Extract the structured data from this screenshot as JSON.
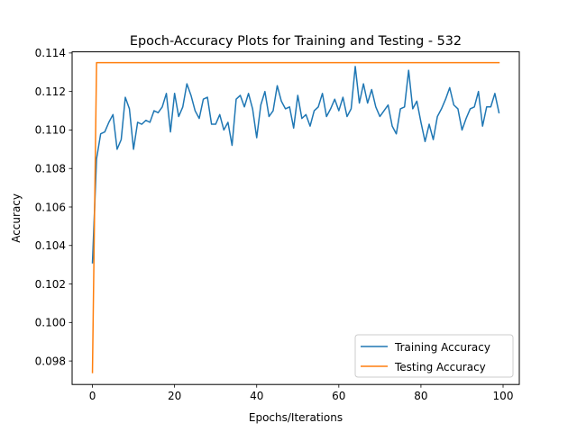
{
  "chart_data": {
    "type": "line",
    "title": "Epoch-Accuracy Plots for Training and Testing - 532",
    "xlabel": "Epochs/Iterations",
    "ylabel": "Accuracy",
    "xlim": [
      -4.95,
      103.95
    ],
    "ylim": [
      0.09678,
      0.11406
    ],
    "xticks": [
      0,
      20,
      40,
      60,
      80,
      100
    ],
    "xtick_labels": [
      "0",
      "20",
      "40",
      "60",
      "80",
      "100"
    ],
    "yticks": [
      0.098,
      0.1,
      0.102,
      0.104,
      0.106,
      0.108,
      0.11,
      0.112,
      0.114
    ],
    "ytick_labels": [
      "0.098",
      "0.100",
      "0.102",
      "0.104",
      "0.106",
      "0.108",
      "0.110",
      "0.112",
      "0.114"
    ],
    "grid": false,
    "legend_position": "lower-right",
    "series": [
      {
        "name": "Training Accuracy",
        "color": "#1f77b4",
        "x": [
          0,
          1,
          2,
          3,
          4,
          5,
          6,
          7,
          8,
          9,
          10,
          11,
          12,
          13,
          14,
          15,
          16,
          17,
          18,
          19,
          20,
          21,
          22,
          23,
          24,
          25,
          26,
          27,
          28,
          29,
          30,
          31,
          32,
          33,
          34,
          35,
          36,
          37,
          38,
          39,
          40,
          41,
          42,
          43,
          44,
          45,
          46,
          47,
          48,
          49,
          50,
          51,
          52,
          53,
          54,
          55,
          56,
          57,
          58,
          59,
          60,
          61,
          62,
          63,
          64,
          65,
          66,
          67,
          68,
          69,
          70,
          71,
          72,
          73,
          74,
          75,
          76,
          77,
          78,
          79,
          80,
          81,
          82,
          83,
          84,
          85,
          86,
          87,
          88,
          89,
          90,
          91,
          92,
          93,
          94,
          95,
          96,
          97,
          98,
          99
        ],
        "y": [
          0.1031,
          0.1085,
          0.1098,
          0.1099,
          0.1104,
          0.1108,
          0.109,
          0.1095,
          0.1117,
          0.1111,
          0.109,
          0.1104,
          0.1103,
          0.1105,
          0.1104,
          0.111,
          0.1109,
          0.1112,
          0.1119,
          0.1099,
          0.1119,
          0.1107,
          0.1112,
          0.1124,
          0.1118,
          0.111,
          0.1106,
          0.1116,
          0.1117,
          0.1103,
          0.1103,
          0.1108,
          0.11,
          0.1104,
          0.1092,
          0.1116,
          0.1118,
          0.1112,
          0.1119,
          0.1111,
          0.1096,
          0.1113,
          0.112,
          0.1107,
          0.111,
          0.1123,
          0.1115,
          0.1111,
          0.1112,
          0.1101,
          0.1118,
          0.1106,
          0.1108,
          0.1102,
          0.111,
          0.1112,
          0.1119,
          0.1107,
          0.1111,
          0.1116,
          0.111,
          0.1117,
          0.1107,
          0.1111,
          0.1133,
          0.1114,
          0.1124,
          0.1114,
          0.1121,
          0.1112,
          0.1107,
          0.111,
          0.1113,
          0.1102,
          0.1098,
          0.1111,
          0.1112,
          0.1131,
          0.1111,
          0.1115,
          0.1104,
          0.1094,
          0.1103,
          0.1095,
          0.1107,
          0.1111,
          0.1116,
          0.1122,
          0.1113,
          0.1111,
          0.11,
          0.1106,
          0.1111,
          0.1112,
          0.112,
          0.1102,
          0.1112,
          0.1112,
          0.1119,
          0.1109
        ]
      },
      {
        "name": "Testing Accuracy",
        "color": "#ff7f0e",
        "x": [
          0,
          1,
          2,
          3,
          4,
          5,
          6,
          7,
          8,
          9,
          10,
          11,
          12,
          13,
          14,
          15,
          16,
          17,
          18,
          19,
          20,
          21,
          22,
          23,
          24,
          25,
          26,
          27,
          28,
          29,
          30,
          31,
          32,
          33,
          34,
          35,
          36,
          37,
          38,
          39,
          40,
          41,
          42,
          43,
          44,
          45,
          46,
          47,
          48,
          49,
          50,
          51,
          52,
          53,
          54,
          55,
          56,
          57,
          58,
          59,
          60,
          61,
          62,
          63,
          64,
          65,
          66,
          67,
          68,
          69,
          70,
          71,
          72,
          73,
          74,
          75,
          76,
          77,
          78,
          79,
          80,
          81,
          82,
          83,
          84,
          85,
          86,
          87,
          88,
          89,
          90,
          91,
          92,
          93,
          94,
          95,
          96,
          97,
          98,
          99
        ],
        "y": [
          0.0974,
          0.1135,
          0.1135,
          0.1135,
          0.1135,
          0.1135,
          0.1135,
          0.1135,
          0.1135,
          0.1135,
          0.1135,
          0.1135,
          0.1135,
          0.1135,
          0.1135,
          0.1135,
          0.1135,
          0.1135,
          0.1135,
          0.1135,
          0.1135,
          0.1135,
          0.1135,
          0.1135,
          0.1135,
          0.1135,
          0.1135,
          0.1135,
          0.1135,
          0.1135,
          0.1135,
          0.1135,
          0.1135,
          0.1135,
          0.1135,
          0.1135,
          0.1135,
          0.1135,
          0.1135,
          0.1135,
          0.1135,
          0.1135,
          0.1135,
          0.1135,
          0.1135,
          0.1135,
          0.1135,
          0.1135,
          0.1135,
          0.1135,
          0.1135,
          0.1135,
          0.1135,
          0.1135,
          0.1135,
          0.1135,
          0.1135,
          0.1135,
          0.1135,
          0.1135,
          0.1135,
          0.1135,
          0.1135,
          0.1135,
          0.1135,
          0.1135,
          0.1135,
          0.1135,
          0.1135,
          0.1135,
          0.1135,
          0.1135,
          0.1135,
          0.1135,
          0.1135,
          0.1135,
          0.1135,
          0.1135,
          0.1135,
          0.1135,
          0.1135,
          0.1135,
          0.1135,
          0.1135,
          0.1135,
          0.1135,
          0.1135,
          0.1135,
          0.1135,
          0.1135,
          0.1135,
          0.1135,
          0.1135,
          0.1135,
          0.1135,
          0.1135,
          0.1135,
          0.1135,
          0.1135,
          0.1135
        ]
      }
    ]
  }
}
